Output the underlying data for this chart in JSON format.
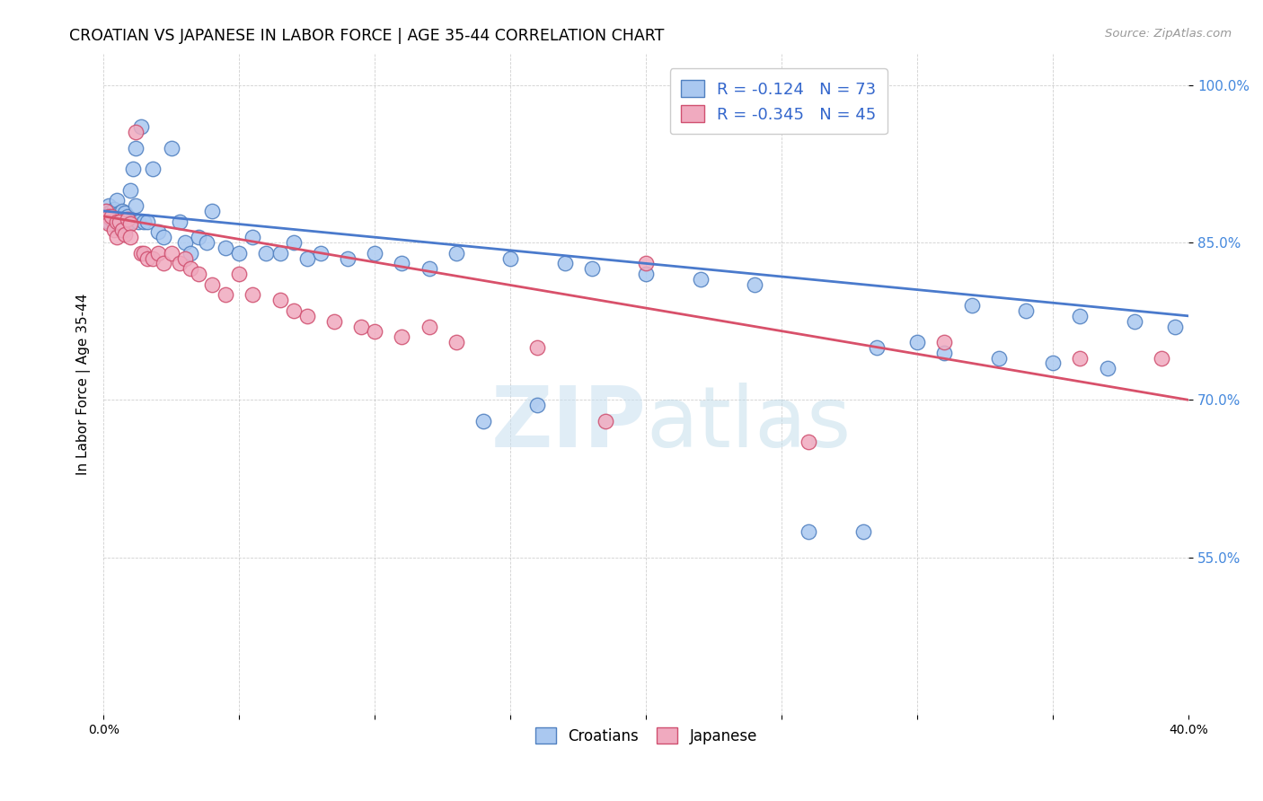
{
  "title": "CROATIAN VS JAPANESE IN LABOR FORCE | AGE 35-44 CORRELATION CHART",
  "source": "Source: ZipAtlas.com",
  "ylabel": "In Labor Force | Age 35-44",
  "watermark_zip": "ZIP",
  "watermark_atlas": "atlas",
  "xlim": [
    0.0,
    0.4
  ],
  "ylim": [
    0.4,
    1.03
  ],
  "yticks": [
    0.55,
    0.7,
    0.85,
    1.0
  ],
  "ytick_labels": [
    "55.0%",
    "70.0%",
    "85.0%",
    "100.0%"
  ],
  "xticks": [
    0.0,
    0.05,
    0.1,
    0.15,
    0.2,
    0.25,
    0.3,
    0.35,
    0.4
  ],
  "xtick_labels": [
    "0.0%",
    "",
    "",
    "",
    "",
    "",
    "",
    "",
    "40.0%"
  ],
  "legend_blue_r": "-0.124",
  "legend_blue_n": "73",
  "legend_pink_r": "-0.345",
  "legend_pink_n": "45",
  "blue_fill": "#aac8f0",
  "blue_edge": "#5080c0",
  "pink_fill": "#f0aabf",
  "pink_edge": "#d05070",
  "blue_line": "#4a7acc",
  "pink_line": "#d8506a",
  "croatians_x": [
    0.001,
    0.001,
    0.002,
    0.002,
    0.002,
    0.003,
    0.003,
    0.003,
    0.004,
    0.004,
    0.005,
    0.005,
    0.005,
    0.006,
    0.006,
    0.007,
    0.007,
    0.008,
    0.008,
    0.009,
    0.01,
    0.01,
    0.011,
    0.012,
    0.012,
    0.013,
    0.014,
    0.015,
    0.016,
    0.018,
    0.02,
    0.022,
    0.025,
    0.028,
    0.03,
    0.032,
    0.035,
    0.038,
    0.04,
    0.045,
    0.05,
    0.055,
    0.06,
    0.065,
    0.07,
    0.075,
    0.08,
    0.09,
    0.1,
    0.11,
    0.12,
    0.13,
    0.14,
    0.15,
    0.16,
    0.17,
    0.18,
    0.2,
    0.22,
    0.24,
    0.26,
    0.28,
    0.3,
    0.32,
    0.34,
    0.36,
    0.38,
    0.395,
    0.285,
    0.31,
    0.33,
    0.35,
    0.37
  ],
  "croatians_y": [
    0.88,
    0.875,
    0.885,
    0.87,
    0.878,
    0.88,
    0.872,
    0.875,
    0.882,
    0.868,
    0.89,
    0.875,
    0.865,
    0.878,
    0.872,
    0.88,
    0.87,
    0.878,
    0.862,
    0.875,
    0.9,
    0.87,
    0.92,
    0.885,
    0.94,
    0.87,
    0.96,
    0.87,
    0.87,
    0.92,
    0.86,
    0.855,
    0.94,
    0.87,
    0.85,
    0.84,
    0.855,
    0.85,
    0.88,
    0.845,
    0.84,
    0.855,
    0.84,
    0.84,
    0.85,
    0.835,
    0.84,
    0.835,
    0.84,
    0.83,
    0.825,
    0.84,
    0.68,
    0.835,
    0.695,
    0.83,
    0.825,
    0.82,
    0.815,
    0.81,
    0.575,
    0.575,
    0.755,
    0.79,
    0.785,
    0.78,
    0.775,
    0.77,
    0.75,
    0.745,
    0.74,
    0.735,
    0.73
  ],
  "japanese_x": [
    0.001,
    0.002,
    0.002,
    0.003,
    0.004,
    0.005,
    0.005,
    0.006,
    0.007,
    0.008,
    0.009,
    0.01,
    0.01,
    0.012,
    0.014,
    0.015,
    0.016,
    0.018,
    0.02,
    0.022,
    0.025,
    0.028,
    0.03,
    0.032,
    0.035,
    0.04,
    0.045,
    0.05,
    0.055,
    0.065,
    0.07,
    0.075,
    0.085,
    0.095,
    0.1,
    0.11,
    0.12,
    0.13,
    0.16,
    0.185,
    0.2,
    0.26,
    0.31,
    0.36,
    0.39
  ],
  "japanese_y": [
    0.88,
    0.875,
    0.868,
    0.875,
    0.862,
    0.87,
    0.855,
    0.87,
    0.862,
    0.858,
    0.872,
    0.868,
    0.855,
    0.955,
    0.84,
    0.84,
    0.835,
    0.835,
    0.84,
    0.83,
    0.84,
    0.83,
    0.835,
    0.825,
    0.82,
    0.81,
    0.8,
    0.82,
    0.8,
    0.795,
    0.785,
    0.78,
    0.775,
    0.77,
    0.765,
    0.76,
    0.77,
    0.755,
    0.75,
    0.68,
    0.83,
    0.66,
    0.755,
    0.74,
    0.74
  ],
  "blue_trendline_x": [
    0.0,
    0.4
  ],
  "blue_trendline_y": [
    0.88,
    0.78
  ],
  "pink_trendline_x": [
    0.0,
    0.4
  ],
  "pink_trendline_y": [
    0.875,
    0.7
  ]
}
